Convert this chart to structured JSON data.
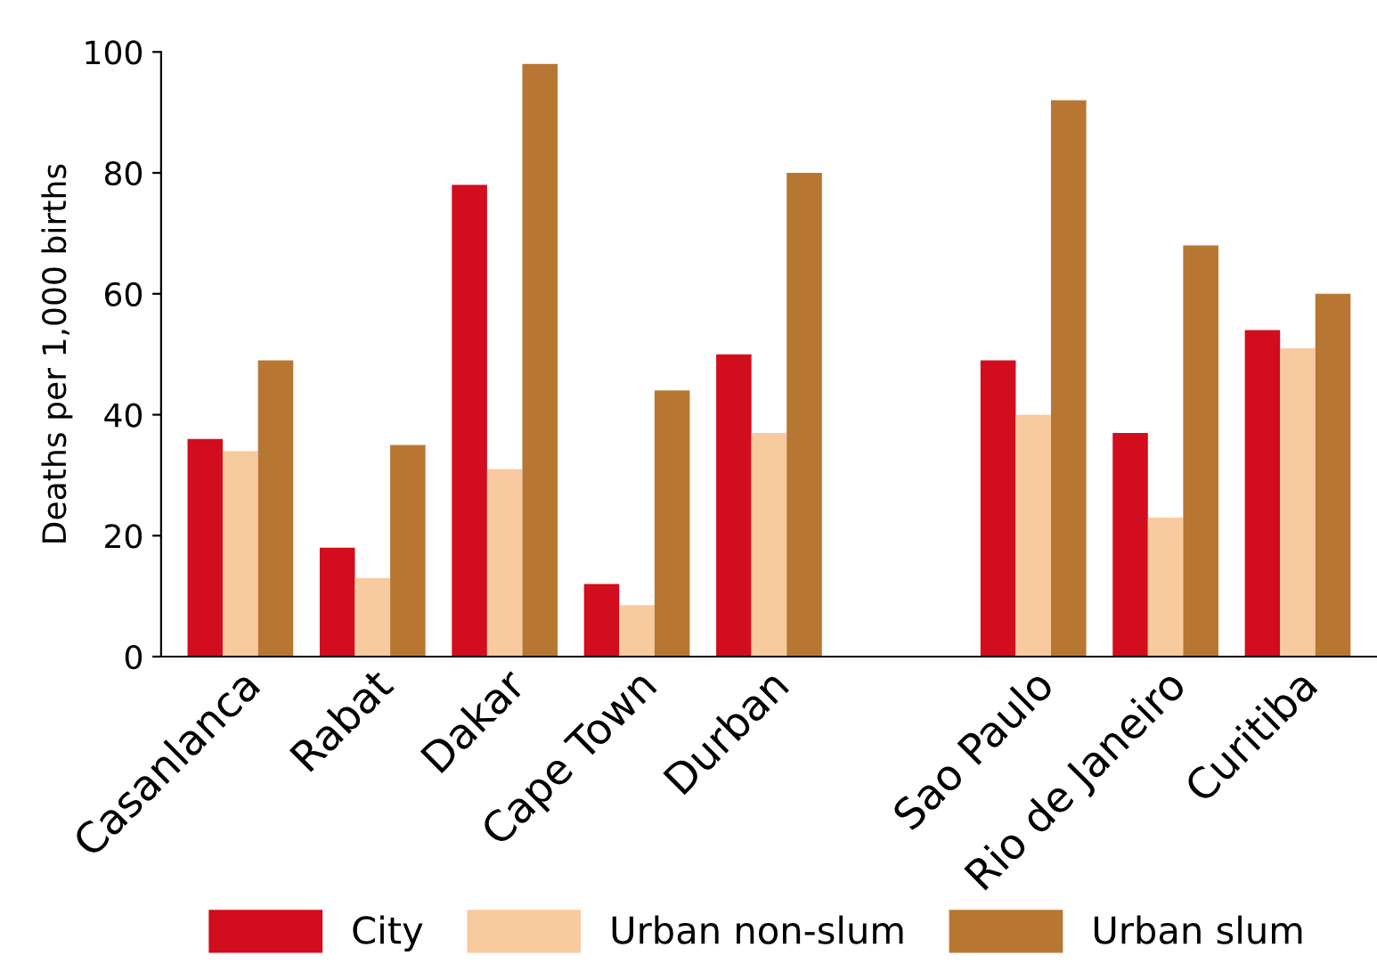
{
  "chart_data": {
    "type": "bar",
    "ylabel": "Deaths per 1,000 births",
    "categories": [
      "Casanlanca",
      "Rabat",
      "Dakar",
      "Cape Town",
      "Durban",
      null,
      "Sao Paulo",
      "Rio de Janeiro",
      "Curitiba"
    ],
    "series": [
      {
        "name": "City",
        "color": "#d10d1e",
        "values": [
          36,
          18,
          78,
          12,
          50,
          null,
          49,
          37,
          54
        ]
      },
      {
        "name": "Urban non-slum",
        "color": "#f8caa0",
        "values": [
          34,
          13,
          31,
          8.5,
          37,
          null,
          40,
          23,
          51
        ]
      },
      {
        "name": "Urban slum",
        "color": "#b77732",
        "values": [
          49,
          35,
          98,
          44,
          80,
          null,
          92,
          68,
          60
        ]
      }
    ],
    "ylim": [
      0,
      100
    ],
    "yticks": [
      0,
      20,
      40,
      60,
      80,
      100
    ],
    "grid": false,
    "legend": "bottom"
  }
}
